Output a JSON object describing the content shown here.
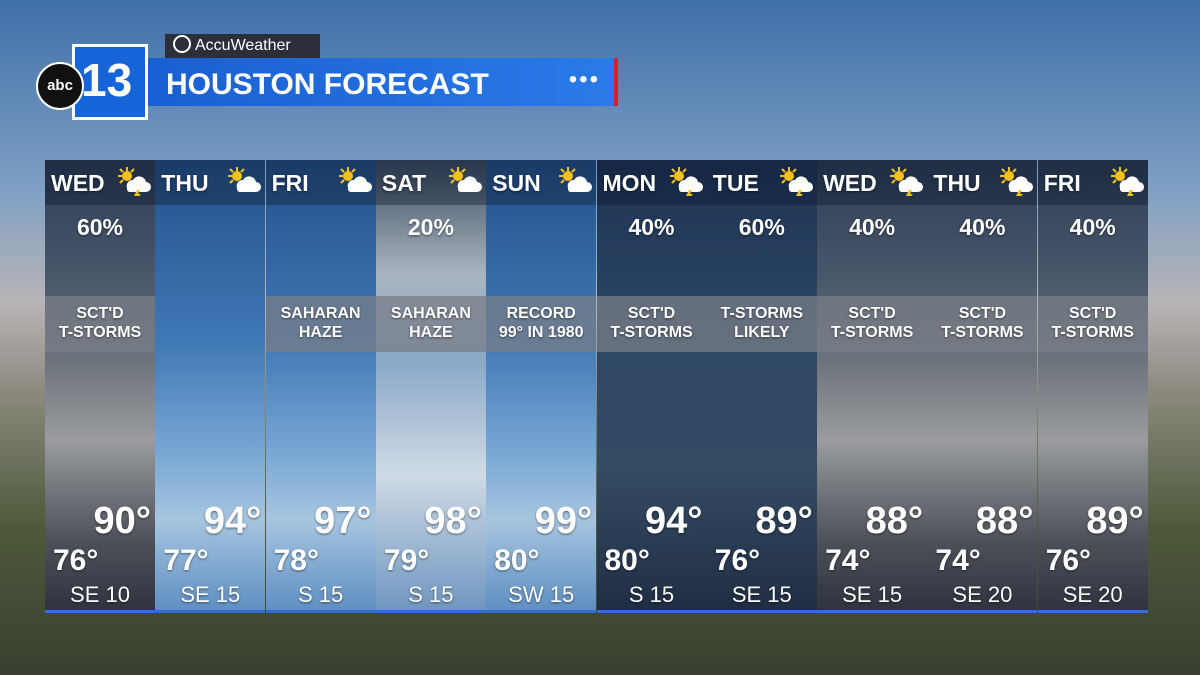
{
  "header": {
    "brand": "AccuWeather",
    "logo_network": "abc",
    "logo_channel": "13",
    "title": "HOUSTON FORECAST"
  },
  "days": [
    {
      "day": "WED",
      "precip": "60%",
      "desc": [
        "SCT'D",
        "T-STORMS"
      ],
      "high": "90°",
      "low": "76°",
      "wind": "SE 10"
    },
    {
      "day": "THU",
      "high": "94°",
      "low": "77°",
      "wind": "SE 15"
    },
    {
      "day": "FRI",
      "desc": [
        "SAHARAN",
        "HAZE"
      ],
      "high": "97°",
      "low": "78°",
      "wind": "S 15"
    },
    {
      "day": "SAT",
      "precip": "20%",
      "desc": [
        "SAHARAN",
        "HAZE"
      ],
      "high": "98°",
      "low": "79°",
      "wind": "S 15"
    },
    {
      "day": "SUN",
      "desc": [
        "RECORD",
        "99° IN 1980"
      ],
      "high": "99°",
      "low": "80°",
      "wind": "SW 15"
    },
    {
      "day": "MON",
      "precip": "40%",
      "desc": [
        "SCT'D",
        "T-STORMS"
      ],
      "high": "94°",
      "low": "80°",
      "wind": "S 15"
    },
    {
      "day": "TUE",
      "precip": "60%",
      "desc": [
        "T-STORMS",
        "LIKELY"
      ],
      "high": "89°",
      "low": "76°",
      "wind": "SE 15"
    },
    {
      "day": "WED",
      "precip": "40%",
      "desc": [
        "SCT'D",
        "T-STORMS"
      ],
      "high": "88°",
      "low": "74°",
      "wind": "SE 15"
    },
    {
      "day": "THU",
      "precip": "40%",
      "desc": [
        "SCT'D",
        "T-STORMS"
      ],
      "high": "88°",
      "low": "74°",
      "wind": "SE 20"
    },
    {
      "day": "FRI",
      "precip": "40%",
      "desc": [
        "SCT'D",
        "T-STORMS"
      ],
      "high": "89°",
      "low": "76°",
      "wind": "SE 20"
    }
  ]
}
